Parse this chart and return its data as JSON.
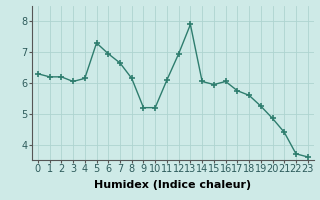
{
  "x": [
    0,
    1,
    2,
    3,
    4,
    5,
    6,
    7,
    8,
    9,
    10,
    11,
    12,
    13,
    14,
    15,
    16,
    17,
    18,
    19,
    20,
    21,
    22,
    23
  ],
  "y": [
    6.3,
    6.2,
    6.2,
    6.05,
    6.15,
    7.3,
    6.95,
    6.65,
    6.15,
    5.2,
    5.2,
    6.1,
    6.95,
    7.9,
    6.05,
    5.95,
    6.05,
    5.75,
    5.6,
    5.25,
    4.85,
    4.4,
    3.7,
    3.6
  ],
  "line_color": "#2e7d6e",
  "marker": "+",
  "marker_size": 4,
  "linewidth": 1.0,
  "xlabel": "Humidex (Indice chaleur)",
  "xlim": [
    -0.5,
    23.5
  ],
  "ylim": [
    3.5,
    8.5
  ],
  "yticks": [
    4,
    5,
    6,
    7,
    8
  ],
  "xticks": [
    0,
    1,
    2,
    3,
    4,
    5,
    6,
    7,
    8,
    9,
    10,
    11,
    12,
    13,
    14,
    15,
    16,
    17,
    18,
    19,
    20,
    21,
    22,
    23
  ],
  "background_color": "#ceeae7",
  "grid_color": "#aed4d0",
  "xlabel_fontsize": 8,
  "tick_fontsize": 7
}
